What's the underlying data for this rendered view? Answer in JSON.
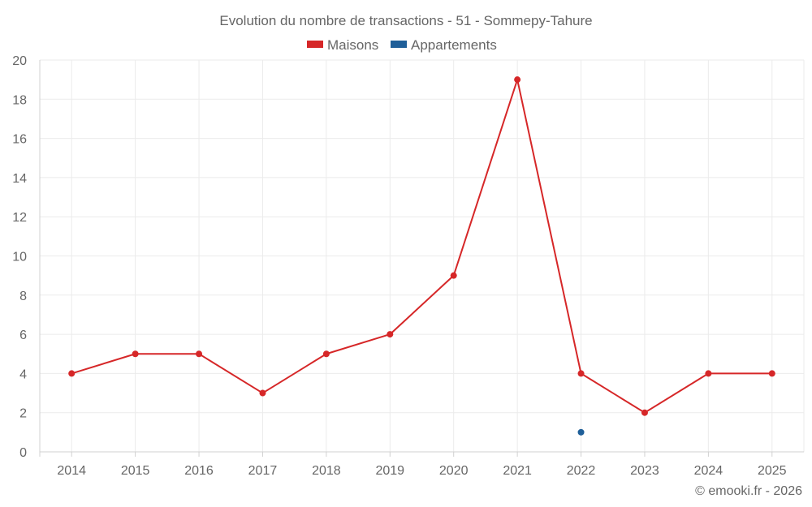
{
  "chart_data": {
    "type": "line",
    "title": "Evolution du nombre de transactions - 51 - Sommepy-Tahure",
    "categories": [
      "2014",
      "2015",
      "2016",
      "2017",
      "2018",
      "2019",
      "2020",
      "2021",
      "2022",
      "2023",
      "2024",
      "2025"
    ],
    "series": [
      {
        "name": "Maisons",
        "color": "#d62728",
        "values": [
          4,
          5,
          5,
          3,
          5,
          6,
          9,
          19,
          4,
          2,
          4,
          4
        ]
      },
      {
        "name": "Appartements",
        "color": "#1f5f99",
        "values": [
          null,
          null,
          null,
          null,
          null,
          null,
          null,
          null,
          1,
          null,
          null,
          null
        ]
      }
    ],
    "yticks": [
      0,
      2,
      4,
      6,
      8,
      10,
      12,
      14,
      16,
      18,
      20
    ],
    "ylim": [
      0,
      20
    ],
    "xlabel": "",
    "ylabel": "",
    "legend": "top-center",
    "grid": true
  },
  "credit": "© emooki.fr - 2026"
}
